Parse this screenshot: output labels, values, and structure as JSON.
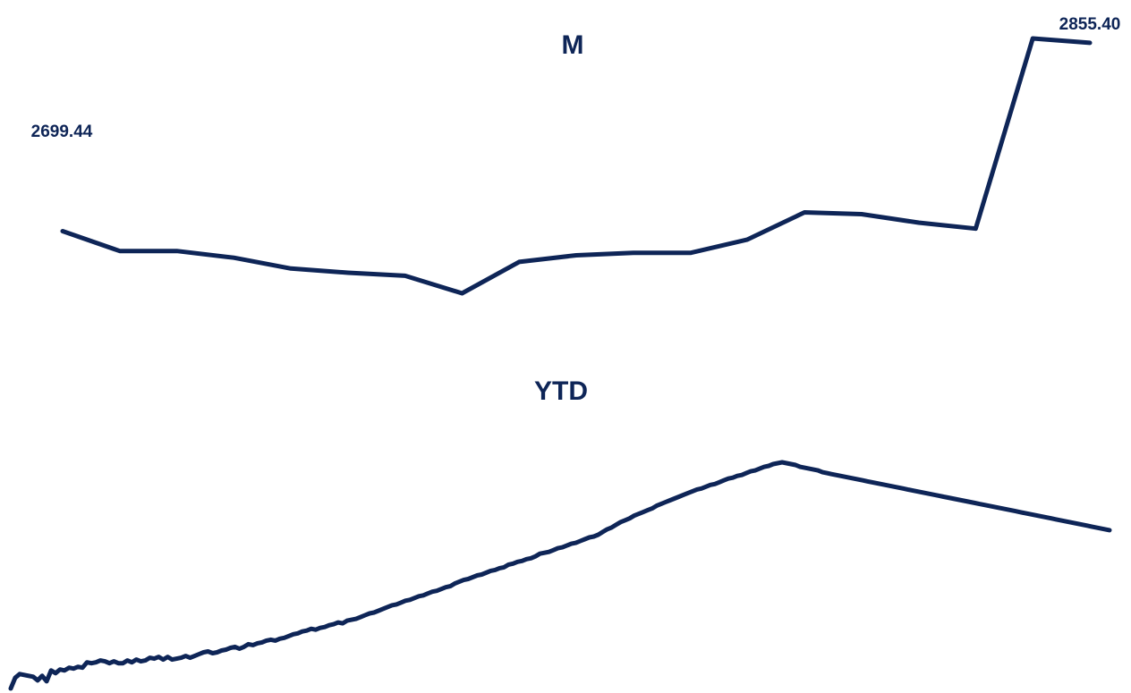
{
  "chart_data": [
    {
      "type": "line",
      "title": "M",
      "grid": false,
      "color": "#0e2557",
      "start_label": "2699.44",
      "end_label": "2855.40",
      "values": [
        2699.44,
        2683.0,
        2683.0,
        2677.5,
        2668.5,
        2665.0,
        2662.5,
        2648.0,
        2674.0,
        2679.5,
        2681.5,
        2681.5,
        2692.5,
        2715.0,
        2713.5,
        2706.5,
        2701.5,
        2859.0,
        2855.4
      ]
    },
    {
      "type": "line",
      "title": "YTD",
      "grid": false,
      "color": "#0e2557",
      "values": [
        0.0,
        4.8,
        6.4,
        6.0,
        5.6,
        5.2,
        3.6,
        5.6,
        3.2,
        8.0,
        6.8,
        8.4,
        8.0,
        9.2,
        8.8,
        9.6,
        9.2,
        11.6,
        11.2,
        11.6,
        12.4,
        12.0,
        11.2,
        12.0,
        11.2,
        11.2,
        12.4,
        11.6,
        12.8,
        12.0,
        12.4,
        13.6,
        13.2,
        14.0,
        12.8,
        14.0,
        12.8,
        13.2,
        13.6,
        14.4,
        13.6,
        14.4,
        15.2,
        16.0,
        16.4,
        15.6,
        16.0,
        16.8,
        17.2,
        18.0,
        18.4,
        17.6,
        18.4,
        19.6,
        19.2,
        20.0,
        20.4,
        21.2,
        21.6,
        21.2,
        22.0,
        22.4,
        23.2,
        24.0,
        24.4,
        25.2,
        25.6,
        26.4,
        26.0,
        26.8,
        27.2,
        28.0,
        28.4,
        29.2,
        28.8,
        30.0,
        30.4,
        30.8,
        31.6,
        32.4,
        33.2,
        33.6,
        34.4,
        35.2,
        36.0,
        36.8,
        37.2,
        38.0,
        38.8,
        39.2,
        40.0,
        40.8,
        41.2,
        42.0,
        42.8,
        43.2,
        44.0,
        44.8,
        45.2,
        46.4,
        47.2,
        48.0,
        48.4,
        49.2,
        50.0,
        50.4,
        51.2,
        52.0,
        52.4,
        53.2,
        53.6,
        54.8,
        55.2,
        56.0,
        56.4,
        57.2,
        57.6,
        58.4,
        59.6,
        60.0,
        60.4,
        61.2,
        62.0,
        62.4,
        63.2,
        64.0,
        64.4,
        65.2,
        66.0,
        66.8,
        67.2,
        68.0,
        69.2,
        70.4,
        71.2,
        72.4,
        73.6,
        74.4,
        75.2,
        76.4,
        77.2,
        78.0,
        78.8,
        79.6,
        80.8,
        81.6,
        82.4,
        83.2,
        84.0,
        84.8,
        85.6,
        86.4,
        87.2,
        88.0,
        88.4,
        89.2,
        90.0,
        90.4,
        91.2,
        92.0,
        92.8,
        93.2,
        94.0,
        94.4,
        95.2,
        96.0,
        96.4,
        97.2,
        98.0,
        98.4,
        99.2,
        99.6,
        100.0,
        99.6,
        99.2,
        98.8,
        98.0,
        97.6,
        97.2,
        96.8,
        96.4,
        95.6,
        95.2,
        94.8,
        94.4,
        94.0,
        93.6,
        93.2,
        92.8,
        92.4,
        92.0,
        91.6,
        91.2,
        90.8,
        90.4,
        90.0,
        89.6,
        89.2,
        88.8,
        88.4,
        88.0,
        87.6,
        87.2,
        86.8,
        86.4,
        86.0,
        85.6,
        85.2,
        84.8,
        84.4,
        84.0,
        83.6,
        83.2,
        82.8,
        82.4,
        82.0,
        81.6,
        81.2,
        80.8,
        80.4,
        80.0,
        79.6,
        79.2,
        78.8,
        78.4,
        78.0,
        77.6,
        77.2,
        76.8,
        76.4,
        76.0,
        75.6,
        75.2,
        74.8,
        74.4,
        74.0,
        73.6,
        73.2,
        72.8,
        72.4,
        72.0,
        71.6,
        71.2,
        70.8,
        70.4,
        70.0
      ]
    }
  ]
}
